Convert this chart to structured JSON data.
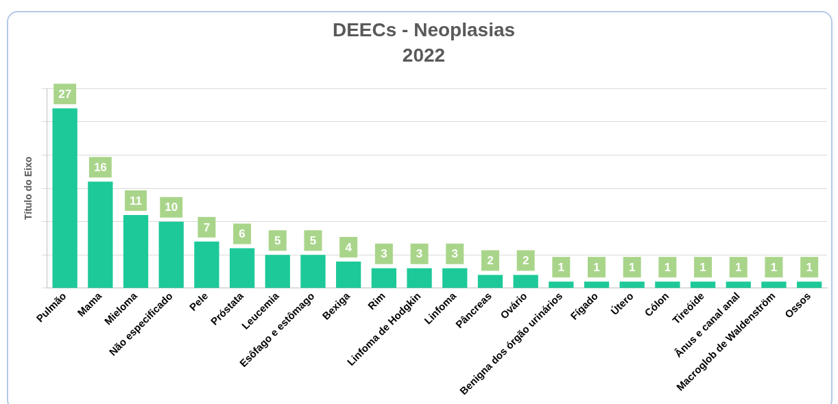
{
  "chart_data": {
    "type": "bar",
    "title": "DEECs - Neoplasias",
    "subtitle": "2022",
    "ylabel": "Título do Eixo",
    "categories": [
      "Pulmão",
      "Mama",
      "Mieloma",
      "Não especificado",
      "Pele",
      "Próstata",
      "Leucemia",
      "Esôfago e estômago",
      "Bexiga",
      "Rim",
      "Linfoma de Hodgkin",
      "Linfoma",
      "Pâncreas",
      "Ovário",
      "Benigna dos órgão urinários",
      "Fígado",
      "Útero",
      "Cólon",
      "Tireóide",
      "Ânus e canal anal",
      "Macroglob de Waldenström",
      "Ossos"
    ],
    "values": [
      27,
      16,
      11,
      10,
      7,
      6,
      5,
      5,
      4,
      3,
      3,
      3,
      2,
      2,
      1,
      1,
      1,
      1,
      1,
      1,
      1,
      1
    ],
    "color": "#1dc999",
    "tick_labels": "x",
    "grid": "y",
    "data_labels": true,
    "legend": false
  }
}
